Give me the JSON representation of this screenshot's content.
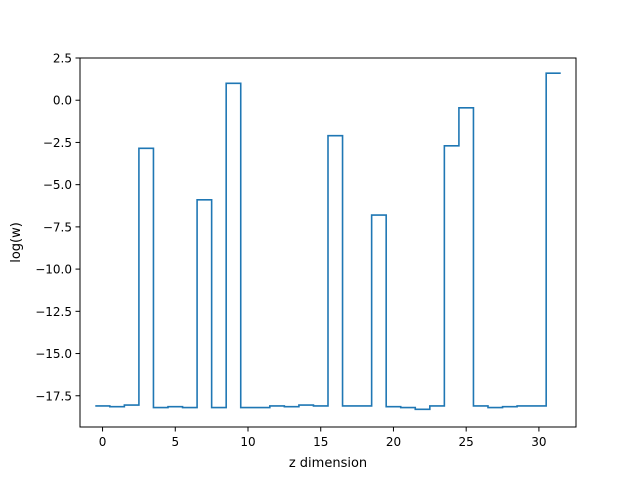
{
  "chart_data": {
    "type": "line",
    "style": "step",
    "title": "",
    "xlabel": "z dimension",
    "ylabel": "log(w)",
    "xlim": [
      -1.55,
      32.55
    ],
    "ylim": [
      -19.35,
      2.5
    ],
    "xticks": [
      0,
      5,
      10,
      15,
      20,
      25,
      30
    ],
    "xtick_labels": [
      "0",
      "5",
      "10",
      "15",
      "20",
      "25",
      "30"
    ],
    "yticks": [
      2.5,
      0.0,
      -2.5,
      -5.0,
      -7.5,
      -10.0,
      -12.5,
      -15.0,
      -17.5
    ],
    "ytick_labels": [
      "2.5",
      "0.0",
      "−2.5",
      "−5.0",
      "−7.5",
      "−10.0",
      "−12.5",
      "−15.0",
      "−17.5"
    ],
    "grid": false,
    "legend": "none",
    "series": [
      {
        "color": "#1f77b4",
        "x": [
          0,
          1,
          2,
          3,
          4,
          5,
          6,
          7,
          8,
          9,
          10,
          11,
          12,
          13,
          14,
          15,
          16,
          17,
          18,
          19,
          20,
          21,
          22,
          23,
          24,
          25,
          26,
          27,
          28,
          29,
          30,
          31
        ],
        "values": [
          -18.1,
          -18.15,
          -18.05,
          -2.85,
          -18.2,
          -18.15,
          -18.2,
          -5.9,
          -18.2,
          1.0,
          -18.2,
          -18.2,
          -18.1,
          -18.15,
          -18.05,
          -18.1,
          -2.1,
          -18.1,
          -18.1,
          -6.8,
          -18.15,
          -18.2,
          -18.3,
          -18.1,
          -2.7,
          -0.45,
          -18.1,
          -18.2,
          -18.15,
          -18.1,
          -18.1,
          1.6
        ]
      }
    ]
  }
}
